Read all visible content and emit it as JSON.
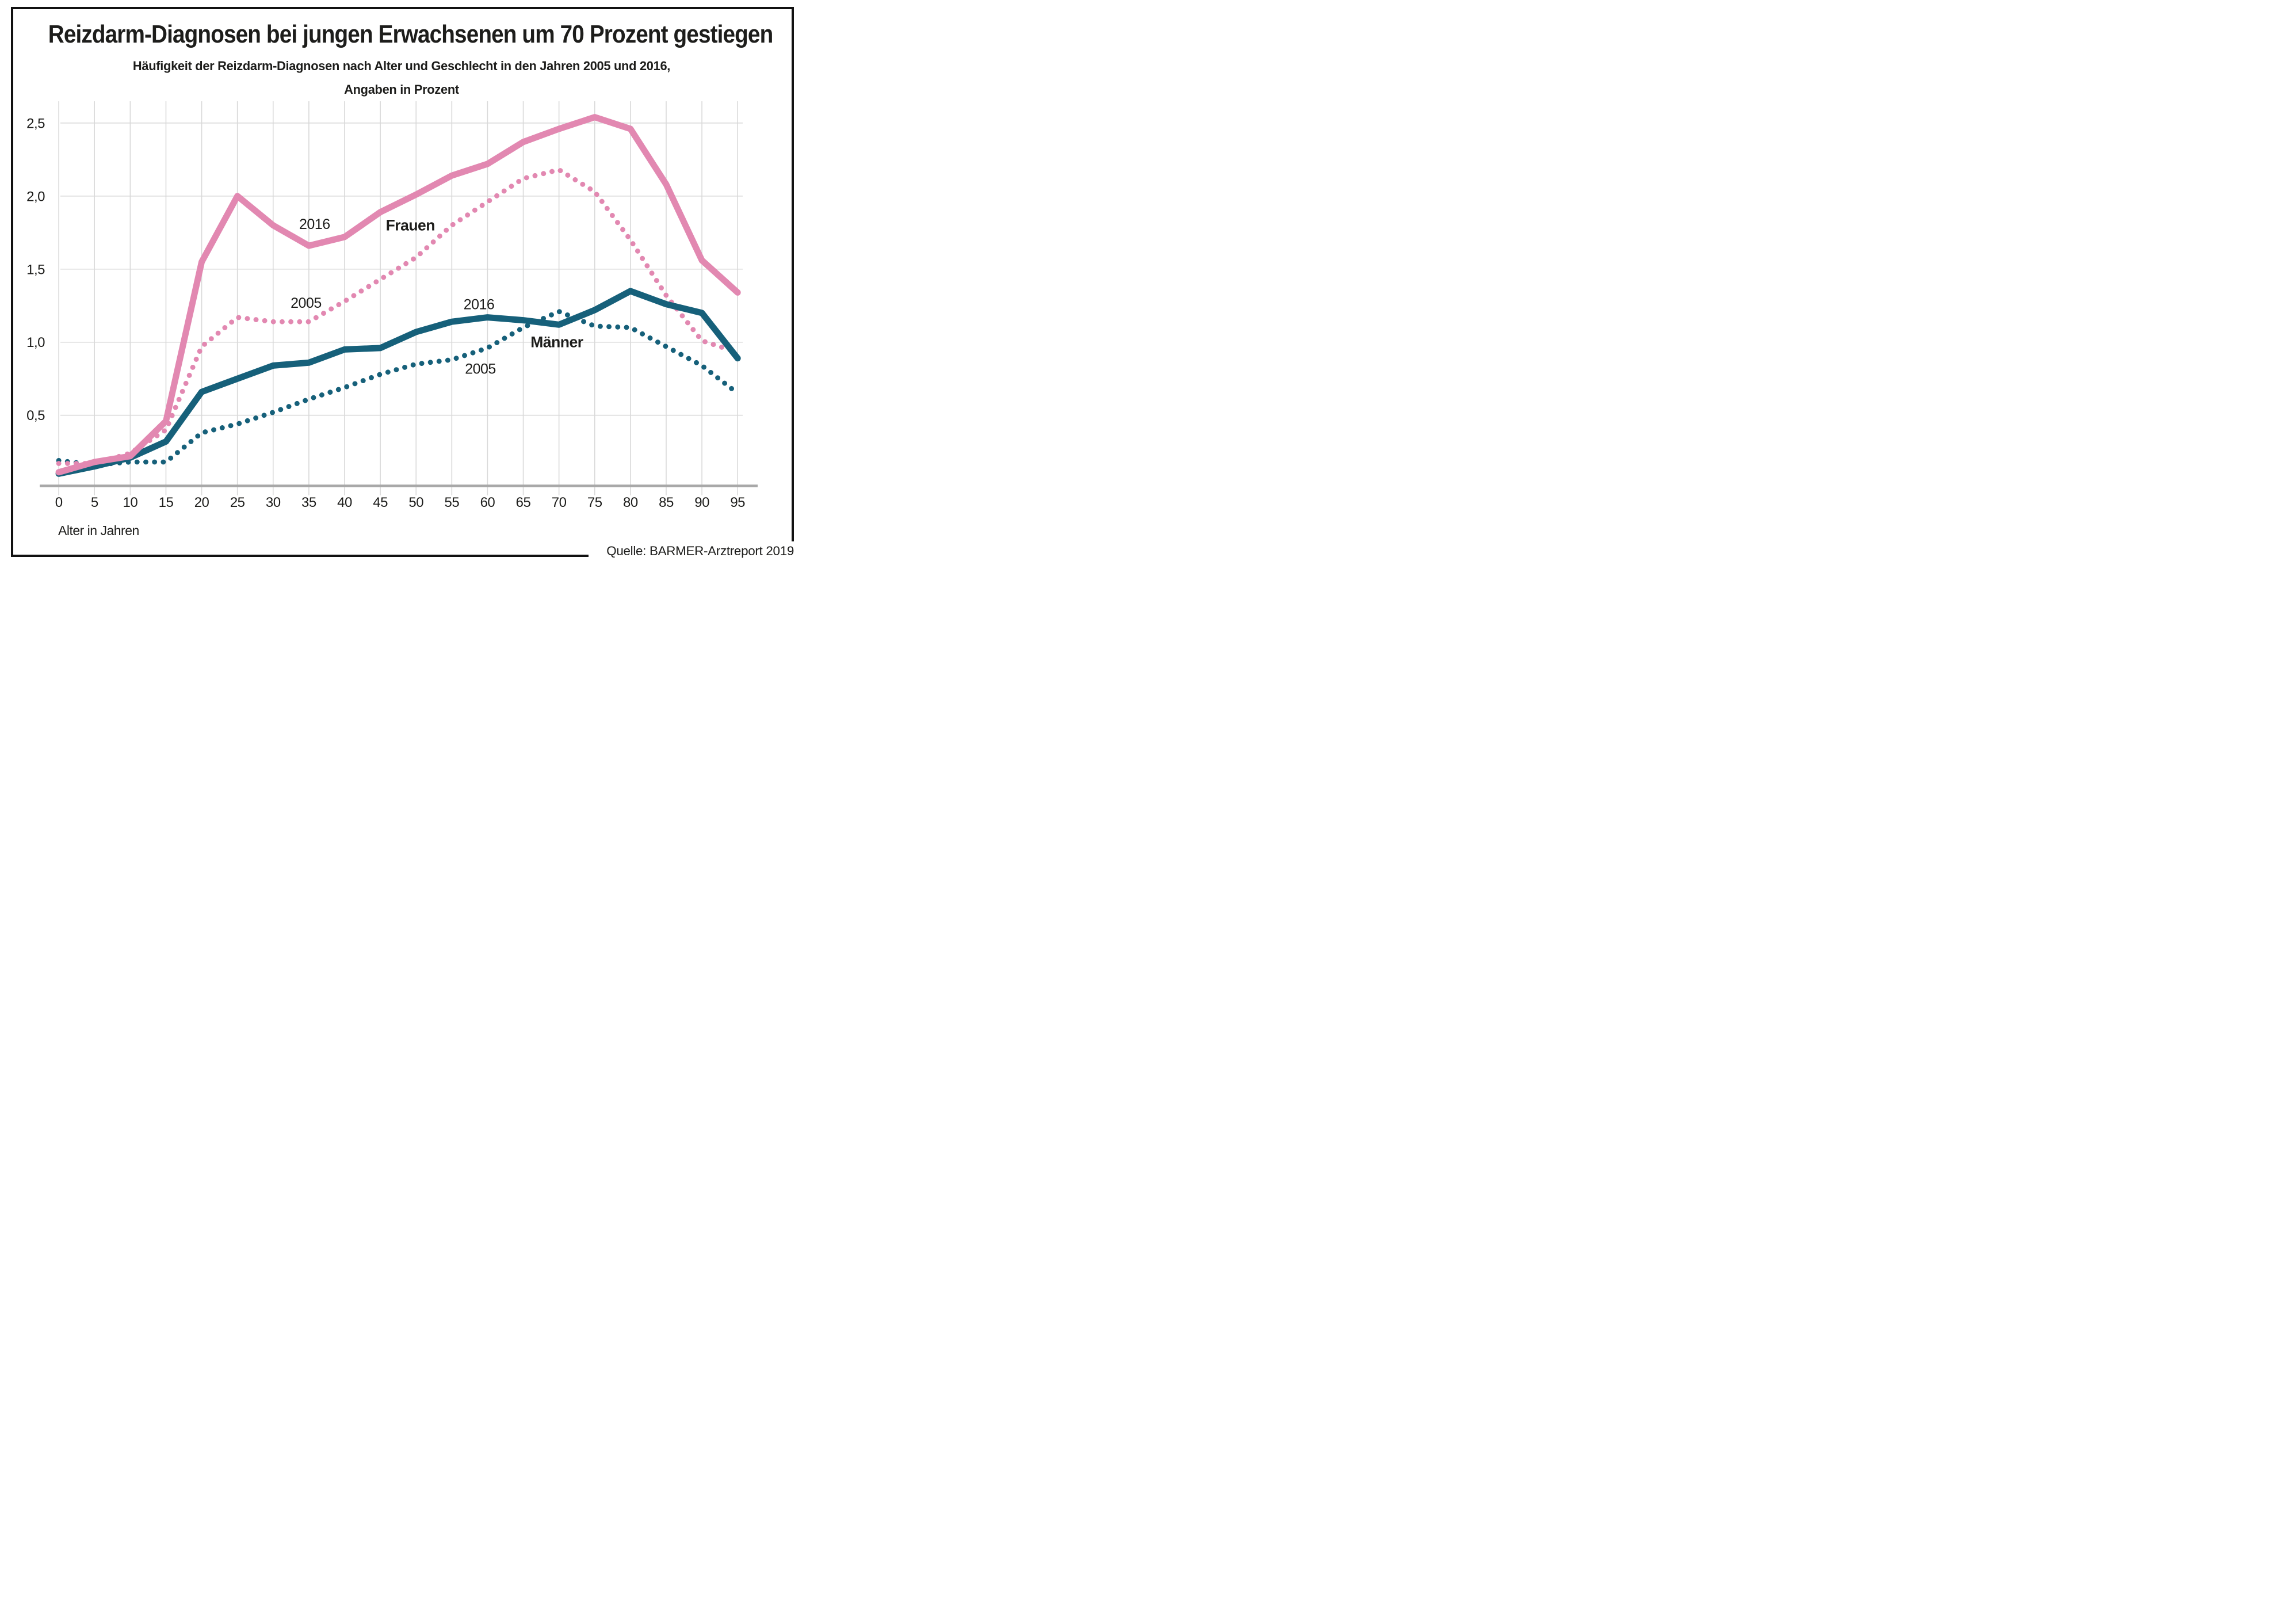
{
  "header": {
    "title": "Reizdarm-Diagnosen bei jungen Erwachsenen um 70 Prozent gestiegen",
    "subtitle_line1": "Häufigkeit der Reizdarm-Diagnosen nach Alter und Geschlecht in den Jahren 2005 und 2016,",
    "subtitle_line2": "Angaben in Prozent"
  },
  "footer": {
    "source": "Quelle: BARMER-Arztreport 2019"
  },
  "chart_data": {
    "type": "line",
    "title": "Reizdarm-Diagnosen bei jungen Erwachsenen um 70 Prozent gestiegen",
    "xlabel": "Alter in Jahren",
    "ylabel": "Angaben in Prozent",
    "x": [
      0,
      5,
      10,
      15,
      20,
      25,
      30,
      35,
      40,
      45,
      50,
      55,
      60,
      65,
      70,
      75,
      80,
      85,
      90,
      95
    ],
    "xlim": [
      0,
      95
    ],
    "ylim": [
      0,
      2.65
    ],
    "grid": true,
    "yticks": [
      {
        "value": 0.5,
        "label": "0,5"
      },
      {
        "value": 1.0,
        "label": "1,0"
      },
      {
        "value": 1.5,
        "label": "1,5"
      },
      {
        "value": 2.0,
        "label": "2,0"
      },
      {
        "value": 2.5,
        "label": "2,5"
      }
    ],
    "series": [
      {
        "name": "Männer 2005",
        "group": "Männer",
        "year": "2005",
        "style": "dotted",
        "color": "#16607a",
        "values": [
          0.19,
          0.16,
          0.18,
          0.18,
          0.38,
          0.44,
          0.52,
          0.61,
          0.69,
          0.78,
          0.85,
          0.88,
          0.96,
          1.1,
          1.21,
          1.11,
          1.1,
          0.97,
          0.84,
          0.65
        ]
      },
      {
        "name": "Frauen 2005",
        "group": "Frauen",
        "year": "2005",
        "style": "dotted",
        "color": "#e288b1",
        "values": [
          0.17,
          0.17,
          0.24,
          0.4,
          0.97,
          1.17,
          1.14,
          1.14,
          1.28,
          1.43,
          1.58,
          1.8,
          1.96,
          2.12,
          2.18,
          2.03,
          1.7,
          1.32,
          1.01,
          0.93
        ]
      },
      {
        "name": "Männer 2016",
        "group": "Männer",
        "year": "2016",
        "style": "solid",
        "color": "#16607a",
        "values": [
          0.1,
          0.15,
          0.21,
          0.32,
          0.66,
          0.75,
          0.84,
          0.86,
          0.95,
          0.96,
          1.07,
          1.14,
          1.17,
          1.15,
          1.12,
          1.22,
          1.35,
          1.26,
          1.2,
          0.89
        ]
      },
      {
        "name": "Frauen 2016",
        "group": "Frauen",
        "year": "2016",
        "style": "solid",
        "color": "#e288b1",
        "values": [
          0.11,
          0.18,
          0.22,
          0.46,
          1.55,
          2.0,
          1.8,
          1.66,
          1.72,
          1.89,
          2.01,
          2.14,
          2.22,
          2.37,
          2.46,
          2.54,
          2.46,
          2.08,
          1.56,
          1.34
        ]
      }
    ],
    "annotations": [
      {
        "text": "2016",
        "age": 35.8,
        "value": 1.81,
        "bold": false,
        "series": "Frauen 2016"
      },
      {
        "text": "Frauen",
        "age": 49.2,
        "value": 1.8,
        "bold": true,
        "series": "Frauen 2016"
      },
      {
        "text": "2005",
        "age": 34.6,
        "value": 1.27,
        "bold": false,
        "series": "Frauen 2005"
      },
      {
        "text": "2016",
        "age": 58.8,
        "value": 1.26,
        "bold": false,
        "series": "Männer 2016"
      },
      {
        "text": "Männer",
        "age": 69.7,
        "value": 1.0,
        "bold": true,
        "series": "Männer 2016"
      },
      {
        "text": "2005",
        "age": 59.0,
        "value": 0.82,
        "bold": false,
        "series": "Männer 2005"
      }
    ],
    "colors": {
      "frauen": "#e288b1",
      "maenner": "#16607a",
      "grid": "#d9d9d9",
      "axis": "#a8a8a8",
      "text": "#1d1d1b",
      "frame": "#111111"
    },
    "legend_position": "inline-labels"
  }
}
